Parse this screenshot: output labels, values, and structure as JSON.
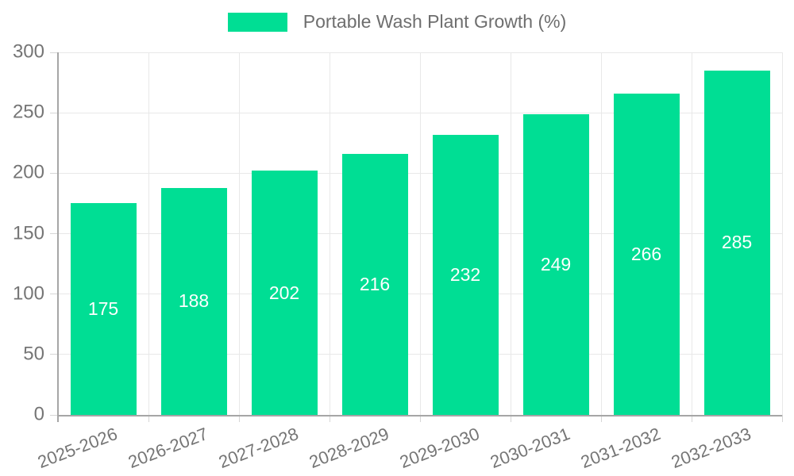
{
  "legend": {
    "label": "Portable Wash Plant Growth (%)"
  },
  "chart_data": {
    "type": "bar",
    "title": "Portable Wash Plant Growth (%)",
    "categories": [
      "2025-2026",
      "2026-2027",
      "2027-2028",
      "2028-2029",
      "2029-2030",
      "2030-2031",
      "2031-2032",
      "2032-2033"
    ],
    "values": [
      175,
      188,
      202,
      216,
      232,
      249,
      266,
      285
    ],
    "xlabel": "",
    "ylabel": "",
    "ylim": [
      0,
      300
    ],
    "yticks": [
      0,
      50,
      100,
      150,
      200,
      250,
      300
    ],
    "grid": true,
    "legend_position": "top-center",
    "colors": {
      "bar": "#00DE94",
      "bar_value_text": "#ffffff",
      "axis_line": "#a6a6a6",
      "gridline": "#e8e8e8",
      "tick_mark": "#d6d6d6",
      "tick_text": "#757575",
      "legend_text": "#6e6e6e"
    }
  }
}
